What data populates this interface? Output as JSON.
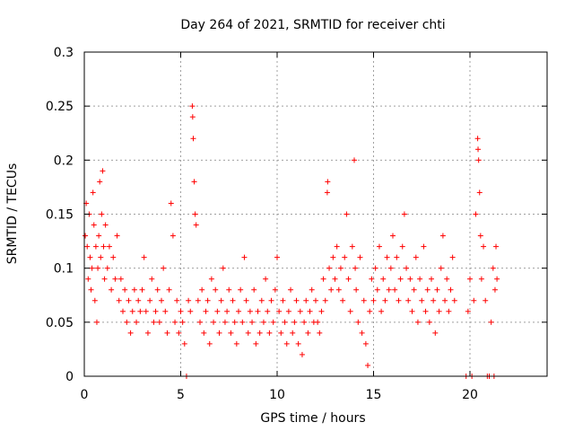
{
  "chart_data": {
    "type": "scatter",
    "title": "Day 264 of 2021, SRMTID for receiver chti",
    "xlabel": "GPS time / hours",
    "ylabel": "SRMTID / TECUs",
    "xlim": [
      0,
      24
    ],
    "ylim": [
      0,
      0.3
    ],
    "xticks": [
      0,
      5,
      10,
      15,
      20
    ],
    "xtick_labels": [
      "0",
      "5",
      "10",
      "15",
      "20"
    ],
    "yticks": [
      0,
      0.05,
      0.1,
      0.15,
      0.2,
      0.25,
      0.3
    ],
    "ytick_labels": [
      "0",
      "0.05",
      "0.1",
      "0.15",
      "0.2",
      "0.25",
      "0.3"
    ],
    "grid": true,
    "marker": "+",
    "color": "#ff0000",
    "series": [
      {
        "name": "SRMTID",
        "points": [
          [
            0.05,
            0.13
          ],
          [
            0.1,
            0.16
          ],
          [
            0.15,
            0.12
          ],
          [
            0.2,
            0.09
          ],
          [
            0.25,
            0.15
          ],
          [
            0.3,
            0.11
          ],
          [
            0.35,
            0.08
          ],
          [
            0.4,
            0.1
          ],
          [
            0.45,
            0.17
          ],
          [
            0.5,
            0.14
          ],
          [
            0.55,
            0.07
          ],
          [
            0.6,
            0.12
          ],
          [
            0.65,
            0.05
          ],
          [
            0.7,
            0.1
          ],
          [
            0.75,
            0.13
          ],
          [
            0.8,
            0.18
          ],
          [
            0.85,
            0.11
          ],
          [
            0.9,
            0.15
          ],
          [
            0.95,
            0.19
          ],
          [
            1.0,
            0.12
          ],
          [
            1.05,
            0.09
          ],
          [
            1.1,
            0.14
          ],
          [
            1.2,
            0.1
          ],
          [
            1.3,
            0.12
          ],
          [
            1.4,
            0.08
          ],
          [
            1.5,
            0.11
          ],
          [
            1.6,
            0.09
          ],
          [
            1.7,
            0.13
          ],
          [
            1.8,
            0.07
          ],
          [
            1.9,
            0.09
          ],
          [
            2.0,
            0.06
          ],
          [
            2.1,
            0.08
          ],
          [
            2.2,
            0.05
          ],
          [
            2.3,
            0.07
          ],
          [
            2.4,
            0.04
          ],
          [
            2.5,
            0.06
          ],
          [
            2.6,
            0.08
          ],
          [
            2.7,
            0.05
          ],
          [
            2.8,
            0.07
          ],
          [
            2.9,
            0.06
          ],
          [
            3.0,
            0.08
          ],
          [
            3.1,
            0.11
          ],
          [
            3.2,
            0.06
          ],
          [
            3.3,
            0.04
          ],
          [
            3.4,
            0.07
          ],
          [
            3.5,
            0.09
          ],
          [
            3.6,
            0.05
          ],
          [
            3.7,
            0.06
          ],
          [
            3.8,
            0.08
          ],
          [
            3.9,
            0.05
          ],
          [
            4.0,
            0.07
          ],
          [
            4.1,
            0.1
          ],
          [
            4.2,
            0.06
          ],
          [
            4.3,
            0.04
          ],
          [
            4.4,
            0.08
          ],
          [
            4.5,
            0.16
          ],
          [
            4.6,
            0.13
          ],
          [
            4.7,
            0.05
          ],
          [
            4.8,
            0.07
          ],
          [
            4.9,
            0.04
          ],
          [
            5.0,
            0.06
          ],
          [
            5.1,
            0.05
          ],
          [
            5.2,
            0.03
          ],
          [
            5.3,
            0.0
          ],
          [
            5.4,
            0.07
          ],
          [
            5.5,
            0.06
          ],
          [
            5.6,
            0.25
          ],
          [
            5.62,
            0.24
          ],
          [
            5.65,
            0.22
          ],
          [
            5.7,
            0.18
          ],
          [
            5.75,
            0.15
          ],
          [
            5.8,
            0.14
          ],
          [
            5.9,
            0.07
          ],
          [
            6.0,
            0.05
          ],
          [
            6.1,
            0.08
          ],
          [
            6.2,
            0.04
          ],
          [
            6.3,
            0.06
          ],
          [
            6.4,
            0.07
          ],
          [
            6.5,
            0.03
          ],
          [
            6.6,
            0.09
          ],
          [
            6.7,
            0.05
          ],
          [
            6.8,
            0.08
          ],
          [
            6.9,
            0.06
          ],
          [
            7.0,
            0.04
          ],
          [
            7.1,
            0.07
          ],
          [
            7.2,
            0.1
          ],
          [
            7.3,
            0.05
          ],
          [
            7.4,
            0.06
          ],
          [
            7.5,
            0.08
          ],
          [
            7.6,
            0.04
          ],
          [
            7.7,
            0.07
          ],
          [
            7.8,
            0.05
          ],
          [
            7.9,
            0.03
          ],
          [
            8.0,
            0.06
          ],
          [
            8.1,
            0.08
          ],
          [
            8.2,
            0.05
          ],
          [
            8.3,
            0.11
          ],
          [
            8.4,
            0.07
          ],
          [
            8.5,
            0.04
          ],
          [
            8.6,
            0.06
          ],
          [
            8.7,
            0.05
          ],
          [
            8.8,
            0.08
          ],
          [
            8.9,
            0.03
          ],
          [
            9.0,
            0.06
          ],
          [
            9.1,
            0.04
          ],
          [
            9.2,
            0.07
          ],
          [
            9.3,
            0.05
          ],
          [
            9.4,
            0.09
          ],
          [
            9.5,
            0.06
          ],
          [
            9.6,
            0.04
          ],
          [
            9.7,
            0.07
          ],
          [
            9.8,
            0.05
          ],
          [
            9.9,
            0.08
          ],
          [
            10.0,
            0.11
          ],
          [
            10.1,
            0.06
          ],
          [
            10.2,
            0.04
          ],
          [
            10.3,
            0.07
          ],
          [
            10.4,
            0.05
          ],
          [
            10.5,
            0.03
          ],
          [
            10.6,
            0.06
          ],
          [
            10.7,
            0.08
          ],
          [
            10.8,
            0.04
          ],
          [
            10.9,
            0.05
          ],
          [
            11.0,
            0.07
          ],
          [
            11.1,
            0.03
          ],
          [
            11.2,
            0.06
          ],
          [
            11.3,
            0.02
          ],
          [
            11.4,
            0.05
          ],
          [
            11.5,
            0.07
          ],
          [
            11.6,
            0.04
          ],
          [
            11.7,
            0.06
          ],
          [
            11.8,
            0.08
          ],
          [
            11.9,
            0.05
          ],
          [
            12.0,
            0.07
          ],
          [
            12.1,
            0.05
          ],
          [
            12.2,
            0.04
          ],
          [
            12.3,
            0.06
          ],
          [
            12.4,
            0.09
          ],
          [
            12.5,
            0.07
          ],
          [
            12.6,
            0.17
          ],
          [
            12.62,
            0.18
          ],
          [
            12.7,
            0.1
          ],
          [
            12.8,
            0.08
          ],
          [
            12.9,
            0.11
          ],
          [
            13.0,
            0.09
          ],
          [
            13.1,
            0.12
          ],
          [
            13.2,
            0.08
          ],
          [
            13.3,
            0.1
          ],
          [
            13.4,
            0.07
          ],
          [
            13.5,
            0.11
          ],
          [
            13.6,
            0.15
          ],
          [
            13.7,
            0.09
          ],
          [
            13.8,
            0.06
          ],
          [
            13.9,
            0.12
          ],
          [
            14.0,
            0.2
          ],
          [
            14.05,
            0.1
          ],
          [
            14.1,
            0.08
          ],
          [
            14.2,
            0.05
          ],
          [
            14.3,
            0.11
          ],
          [
            14.4,
            0.04
          ],
          [
            14.5,
            0.07
          ],
          [
            14.6,
            0.03
          ],
          [
            14.7,
            0.01
          ],
          [
            14.8,
            0.06
          ],
          [
            14.9,
            0.09
          ],
          [
            15.0,
            0.07
          ],
          [
            15.1,
            0.1
          ],
          [
            15.2,
            0.08
          ],
          [
            15.3,
            0.12
          ],
          [
            15.4,
            0.06
          ],
          [
            15.5,
            0.09
          ],
          [
            15.6,
            0.07
          ],
          [
            15.7,
            0.11
          ],
          [
            15.8,
            0.08
          ],
          [
            15.9,
            0.1
          ],
          [
            16.0,
            0.13
          ],
          [
            16.1,
            0.08
          ],
          [
            16.2,
            0.11
          ],
          [
            16.3,
            0.07
          ],
          [
            16.4,
            0.09
          ],
          [
            16.5,
            0.12
          ],
          [
            16.6,
            0.15
          ],
          [
            16.7,
            0.1
          ],
          [
            16.8,
            0.07
          ],
          [
            16.9,
            0.09
          ],
          [
            17.0,
            0.06
          ],
          [
            17.1,
            0.08
          ],
          [
            17.2,
            0.11
          ],
          [
            17.3,
            0.05
          ],
          [
            17.4,
            0.09
          ],
          [
            17.5,
            0.07
          ],
          [
            17.6,
            0.12
          ],
          [
            17.7,
            0.06
          ],
          [
            17.8,
            0.08
          ],
          [
            17.9,
            0.05
          ],
          [
            18.0,
            0.09
          ],
          [
            18.1,
            0.07
          ],
          [
            18.2,
            0.04
          ],
          [
            18.3,
            0.08
          ],
          [
            18.4,
            0.06
          ],
          [
            18.5,
            0.1
          ],
          [
            18.6,
            0.13
          ],
          [
            18.7,
            0.07
          ],
          [
            18.8,
            0.09
          ],
          [
            18.9,
            0.06
          ],
          [
            19.0,
            0.08
          ],
          [
            19.1,
            0.11
          ],
          [
            19.2,
            0.07
          ],
          [
            19.8,
            0.0
          ],
          [
            19.9,
            0.06
          ],
          [
            20.0,
            0.09
          ],
          [
            20.1,
            0.0
          ],
          [
            20.2,
            0.07
          ],
          [
            20.3,
            0.15
          ],
          [
            20.4,
            0.22
          ],
          [
            20.42,
            0.21
          ],
          [
            20.45,
            0.2
          ],
          [
            20.5,
            0.17
          ],
          [
            20.55,
            0.13
          ],
          [
            20.6,
            0.09
          ],
          [
            20.7,
            0.12
          ],
          [
            20.8,
            0.07
          ],
          [
            20.9,
            0.0
          ],
          [
            21.0,
            0.0
          ],
          [
            21.1,
            0.05
          ],
          [
            21.2,
            0.1
          ],
          [
            21.25,
            0.0
          ],
          [
            21.3,
            0.08
          ],
          [
            21.35,
            0.12
          ],
          [
            21.4,
            0.09
          ]
        ]
      }
    ]
  }
}
